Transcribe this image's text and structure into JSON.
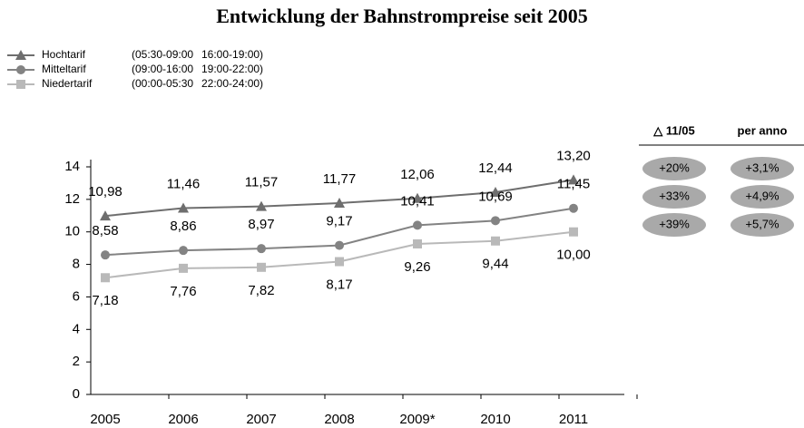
{
  "chart_data": {
    "type": "line",
    "title": "Entwicklung der Bahnstrompreise seit 2005",
    "categories": [
      "2005",
      "2006",
      "2007",
      "2008",
      "2009*",
      "2010",
      "2011"
    ],
    "series": [
      {
        "name": "Hochtarif",
        "times": [
          "(05:30-09:00",
          "16:00-19:00)"
        ],
        "color": "#6e6e6e",
        "marker": "triangle",
        "values": [
          10.98,
          11.46,
          11.57,
          11.77,
          12.06,
          12.44,
          13.2
        ],
        "value_labels": [
          "10,98",
          "11,46",
          "11,57",
          "11,77",
          "12,06",
          "12,44",
          "13,20"
        ]
      },
      {
        "name": "Mitteltarif",
        "times": [
          "(09:00-16:00",
          "19:00-22:00)"
        ],
        "color": "#838383",
        "marker": "circle",
        "values": [
          8.58,
          8.86,
          8.97,
          9.17,
          10.41,
          10.69,
          11.45
        ],
        "value_labels": [
          "8,58",
          "8,86",
          "8,97",
          "9,17",
          "10,41",
          "10,69",
          "11,45"
        ]
      },
      {
        "name": "Niedertarif",
        "times": [
          "(00:00-05:30",
          "22:00-24:00)"
        ],
        "color": "#b9b9b9",
        "marker": "square",
        "values": [
          7.18,
          7.76,
          7.82,
          8.17,
          9.26,
          9.44,
          10.0
        ],
        "value_labels": [
          "7,18",
          "7,76",
          "7,82",
          "8,17",
          "9,26",
          "9,44",
          "10,00"
        ]
      }
    ],
    "ylim": [
      0,
      14
    ],
    "yticks": [
      0,
      2,
      4,
      6,
      8,
      10,
      12,
      14
    ],
    "table": {
      "header": [
        "△ 11/05",
        "per anno"
      ],
      "rows": [
        [
          "+20%",
          "+3,1%"
        ],
        [
          "+33%",
          "+4,9%"
        ],
        [
          "+39%",
          "+5,7%"
        ]
      ]
    }
  }
}
